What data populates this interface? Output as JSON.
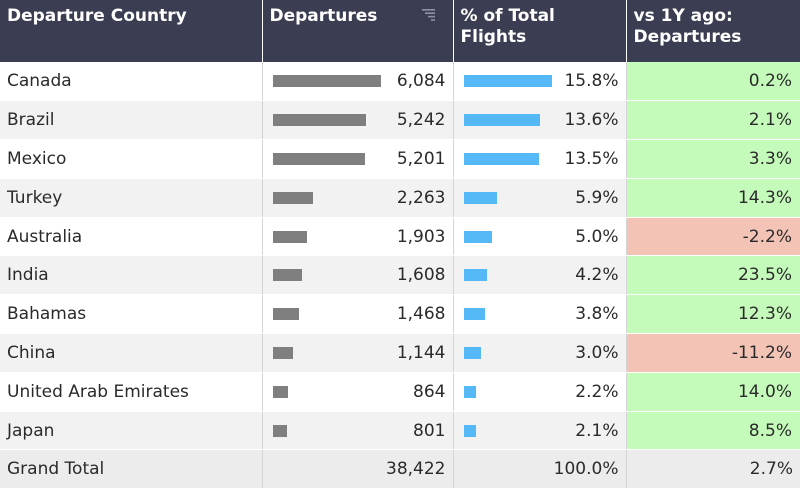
{
  "header": {
    "country": "Departure Country",
    "departures": "Departures",
    "pct_line1": "% of Total",
    "pct_line2": "Flights",
    "vs_line1": "vs 1Y ago:",
    "vs_line2": "Departures",
    "sort_icon": "sort-descending-icon"
  },
  "colors": {
    "departures_bar": "#7f7f7f",
    "pct_bar": "#54b9f6",
    "positive_bg": "#c5fbba",
    "negative_bg": "#f3c3b6",
    "header_bg": "#3b3e52"
  },
  "chart_data": {
    "type": "table",
    "columns": [
      "Departure Country",
      "Departures",
      "% of Total Flights",
      "vs 1Y ago: Departures"
    ],
    "rows": [
      {
        "country": "Canada",
        "departures": 6084,
        "departures_label": "6,084",
        "pct": 15.8,
        "pct_label": "15.8%",
        "change": 0.2,
        "change_label": "0.2%"
      },
      {
        "country": "Brazil",
        "departures": 5242,
        "departures_label": "5,242",
        "pct": 13.6,
        "pct_label": "13.6%",
        "change": 2.1,
        "change_label": "2.1%"
      },
      {
        "country": "Mexico",
        "departures": 5201,
        "departures_label": "5,201",
        "pct": 13.5,
        "pct_label": "13.5%",
        "change": 3.3,
        "change_label": "3.3%"
      },
      {
        "country": "Turkey",
        "departures": 2263,
        "departures_label": "2,263",
        "pct": 5.9,
        "pct_label": "5.9%",
        "change": 14.3,
        "change_label": "14.3%"
      },
      {
        "country": "Australia",
        "departures": 1903,
        "departures_label": "1,903",
        "pct": 5.0,
        "pct_label": "5.0%",
        "change": -2.2,
        "change_label": "-2.2%"
      },
      {
        "country": "India",
        "departures": 1608,
        "departures_label": "1,608",
        "pct": 4.2,
        "pct_label": "4.2%",
        "change": 23.5,
        "change_label": "23.5%"
      },
      {
        "country": "Bahamas",
        "departures": 1468,
        "departures_label": "1,468",
        "pct": 3.8,
        "pct_label": "3.8%",
        "change": 12.3,
        "change_label": "12.3%"
      },
      {
        "country": "China",
        "departures": 1144,
        "departures_label": "1,144",
        "pct": 3.0,
        "pct_label": "3.0%",
        "change": -11.2,
        "change_label": "-11.2%"
      },
      {
        "country": "United Arab Emirates",
        "departures": 864,
        "departures_label": "864",
        "pct": 2.2,
        "pct_label": "2.2%",
        "change": 14.0,
        "change_label": "14.0%"
      },
      {
        "country": "Japan",
        "departures": 801,
        "departures_label": "801",
        "pct": 2.1,
        "pct_label": "2.1%",
        "change": 8.5,
        "change_label": "8.5%"
      }
    ],
    "total": {
      "label": "Grand Total",
      "departures_label": "38,422",
      "pct_label": "100.0%",
      "change_label": "2.7%"
    }
  }
}
